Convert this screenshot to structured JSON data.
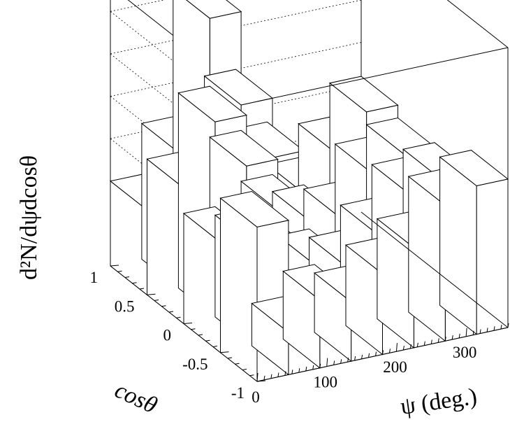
{
  "chart_data": {
    "type": "lego3d",
    "zlabel": "d²N/dψdcosθ",
    "xlabel": "ψ (deg.)",
    "ylabel": "cosθ",
    "xlim": [
      0,
      360
    ],
    "ylim": [
      -1,
      1
    ],
    "zlim": [
      0,
      330
    ],
    "x_ticks": [
      "0",
      "100",
      "200",
      "300"
    ],
    "y_ticks": [
      "-1",
      "-0.5",
      "0",
      "0.5",
      "1"
    ],
    "z_ticks": [
      "50",
      "100",
      "150",
      "200",
      "250",
      "300"
    ],
    "x_bins": [
      0,
      45,
      90,
      135,
      180,
      225,
      270,
      315,
      360
    ],
    "y_bins": [
      -1,
      -0.5,
      0,
      0.5,
      1
    ],
    "grid": true,
    "values": [
      [
        182,
        50,
        80,
        70,
        95,
        118,
        160,
        175
      ],
      [
        130,
        120,
        95,
        80,
        70,
        100,
        140,
        150
      ],
      [
        160,
        230,
        170,
        110,
        90,
        85,
        130,
        145
      ],
      [
        100,
        160,
        310,
        200,
        130,
        80,
        120,
        160
      ]
    ]
  }
}
